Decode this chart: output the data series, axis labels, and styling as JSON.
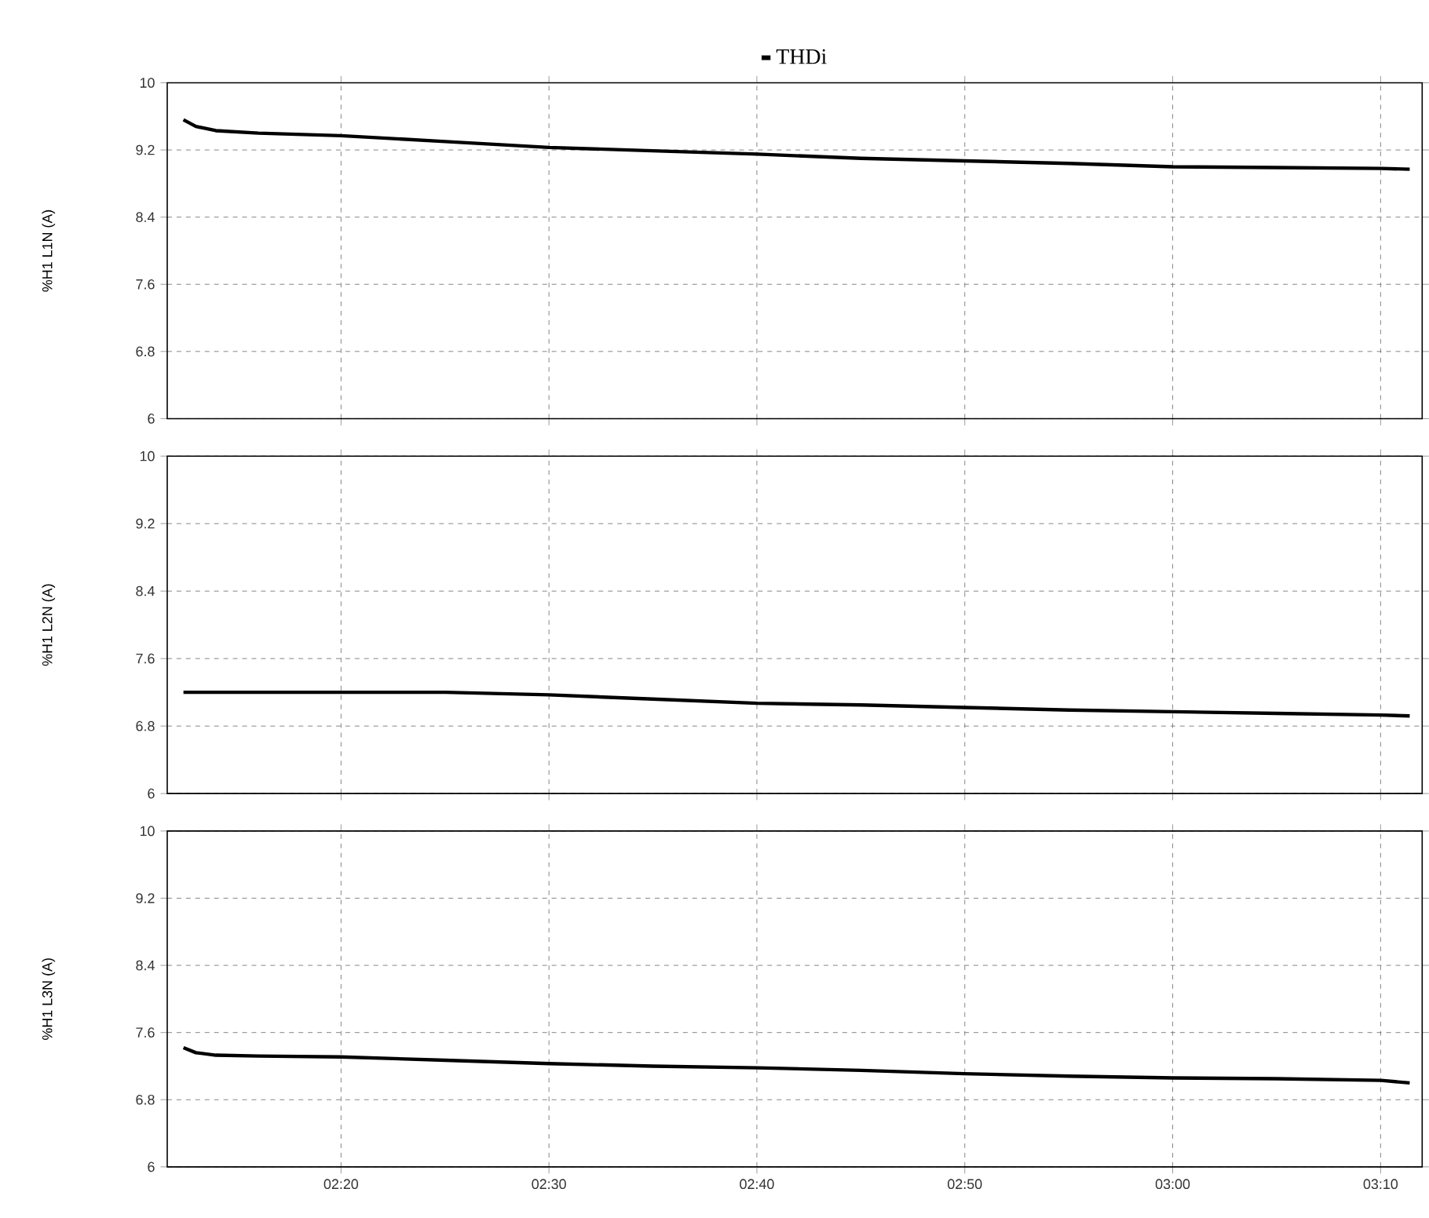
{
  "chart_data": [
    {
      "type": "line",
      "ylabel": "%H1 L1N (A)",
      "legend": "top",
      "grid": true,
      "line_style": "solid",
      "tick_labels": "y",
      "xlim": [
        2.194,
        3.2
      ],
      "ylim": [
        6,
        10
      ],
      "yticks": [
        6,
        6.8,
        7.6,
        8.4,
        9.2,
        10
      ],
      "xticks": [
        {
          "value": 2.333333,
          "label": null
        },
        {
          "value": 2.5,
          "label": null
        },
        {
          "value": 2.666667,
          "label": null
        },
        {
          "value": 2.833333,
          "label": null
        },
        {
          "value": 3.0,
          "label": null
        },
        {
          "value": 3.166667,
          "label": null
        }
      ],
      "series": [
        {
          "name": "THDi",
          "color": "#000000",
          "x": [
            2.207,
            2.217,
            2.233,
            2.267,
            2.333,
            2.417,
            2.5,
            2.583,
            2.667,
            2.75,
            2.833,
            2.917,
            3.0,
            3.083,
            3.167,
            3.19
          ],
          "values": [
            9.56,
            9.48,
            9.43,
            9.4,
            9.37,
            9.3,
            9.23,
            9.19,
            9.15,
            9.1,
            9.07,
            9.04,
            9.0,
            8.99,
            8.98,
            8.97
          ]
        }
      ]
    },
    {
      "type": "line",
      "ylabel": "%H1 L2N (A)",
      "grid": true,
      "line_style": "solid",
      "tick_labels": "y",
      "xlim": [
        2.194,
        3.2
      ],
      "ylim": [
        6,
        10
      ],
      "yticks": [
        6,
        6.8,
        7.6,
        8.4,
        9.2,
        10
      ],
      "xticks": [
        {
          "value": 2.333333,
          "label": null
        },
        {
          "value": 2.5,
          "label": null
        },
        {
          "value": 2.666667,
          "label": null
        },
        {
          "value": 2.833333,
          "label": null
        },
        {
          "value": 3.0,
          "label": null
        },
        {
          "value": 3.166667,
          "label": null
        }
      ],
      "series": [
        {
          "color": "#000000",
          "x": [
            2.207,
            2.233,
            2.267,
            2.333,
            2.417,
            2.5,
            2.583,
            2.667,
            2.75,
            2.833,
            2.917,
            3.0,
            3.083,
            3.167,
            3.19
          ],
          "values": [
            7.2,
            7.2,
            7.2,
            7.2,
            7.2,
            7.17,
            7.12,
            7.07,
            7.05,
            7.02,
            6.99,
            6.97,
            6.95,
            6.93,
            6.92
          ]
        }
      ]
    },
    {
      "type": "line",
      "ylabel": "%H1 L3N (A)",
      "grid": true,
      "line_style": "solid",
      "xlim": [
        2.194,
        3.2
      ],
      "ylim": [
        6,
        10
      ],
      "yticks": [
        6,
        6.8,
        7.6,
        8.4,
        9.2,
        10
      ],
      "xticks": [
        {
          "value": 2.333333,
          "label": "02:20"
        },
        {
          "value": 2.5,
          "label": "02:30"
        },
        {
          "value": 2.666667,
          "label": "02:40"
        },
        {
          "value": 2.833333,
          "label": "02:50"
        },
        {
          "value": 3.0,
          "label": "03:00"
        },
        {
          "value": 3.166667,
          "label": "03:10"
        }
      ],
      "series": [
        {
          "color": "#000000",
          "x": [
            2.207,
            2.217,
            2.233,
            2.267,
            2.333,
            2.417,
            2.5,
            2.583,
            2.667,
            2.75,
            2.833,
            2.917,
            3.0,
            3.083,
            3.167,
            3.19
          ],
          "values": [
            7.42,
            7.36,
            7.33,
            7.32,
            7.31,
            7.27,
            7.23,
            7.2,
            7.18,
            7.15,
            7.11,
            7.08,
            7.06,
            7.05,
            7.03,
            7.0
          ]
        }
      ]
    }
  ]
}
